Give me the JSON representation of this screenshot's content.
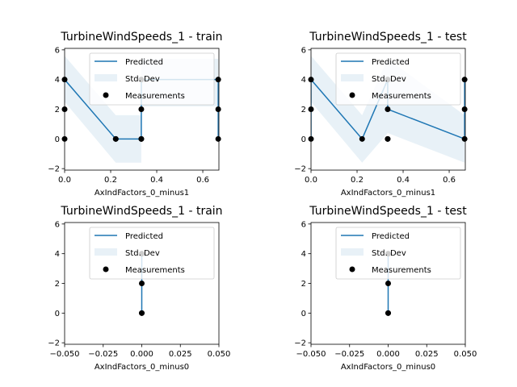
{
  "colors": {
    "predicted_line": "#1f77b4",
    "std_fill": "#1f77b4",
    "measurements": "#000000"
  },
  "chart_data": [
    {
      "type": "line",
      "title": "TurbineWindSpeeds_1 - train",
      "xlabel": "AxIndFactors_0_minus1",
      "xlim": [
        0,
        0.67
      ],
      "ylim": [
        -2.1,
        6.1
      ],
      "xticks": [
        0.0,
        0.2,
        0.4,
        0.6
      ],
      "xtick_labels": [
        "0.0",
        "0.2",
        "0.4",
        "0.6"
      ],
      "yticks": [
        -2,
        0,
        2,
        4,
        6
      ],
      "ytick_labels": [
        "−2",
        "0",
        "2",
        "4",
        "6"
      ],
      "legend": {
        "placement": "top-center",
        "entries": [
          "Predicted",
          "Std. Dev",
          "Measurements"
        ]
      },
      "predicted": {
        "x": [
          0,
          0.222,
          0.333,
          0.333,
          0.333,
          0.667,
          0.667
        ],
        "y": [
          4,
          0,
          0,
          4,
          4,
          4,
          0
        ]
      },
      "std_dev": {
        "x": [
          0,
          0.222,
          0.333,
          0.333,
          0.667,
          0.667
        ],
        "lower": [
          2.5,
          -1.6,
          -1.6,
          2.2,
          2.2,
          -1.6
        ],
        "upper": [
          5.6,
          1.6,
          1.6,
          5.4,
          5.4,
          1.6
        ]
      },
      "measurements": {
        "x": [
          0,
          0,
          0,
          0.222,
          0.222,
          0.333,
          0.333,
          0.333,
          0.333,
          0.667,
          0.667,
          0.667
        ],
        "y": [
          0,
          2,
          4,
          0,
          0,
          0,
          2,
          4,
          0,
          0,
          2,
          4
        ]
      }
    },
    {
      "type": "line",
      "title": "TurbineWindSpeeds_1 - test",
      "xlabel": "AxIndFactors_0_minus1",
      "xlim": [
        0,
        0.67
      ],
      "ylim": [
        -2.1,
        6.1
      ],
      "xticks": [
        0.0,
        0.2,
        0.4,
        0.6
      ],
      "xtick_labels": [
        "0.0",
        "0.2",
        "0.4",
        "0.6"
      ],
      "yticks": [
        -2,
        0,
        2,
        4,
        6
      ],
      "ytick_labels": [
        "−2",
        "0",
        "2",
        "4",
        "6"
      ],
      "legend": {
        "placement": "top-center",
        "entries": [
          "Predicted",
          "Std. Dev",
          "Measurements"
        ]
      },
      "predicted": {
        "x": [
          0,
          0,
          0.222,
          0.333,
          0.333,
          0.333,
          0.667,
          0.667
        ],
        "y": [
          0,
          4,
          0,
          4,
          2,
          2,
          0,
          4
        ]
      },
      "std_dev": {
        "x": [
          0,
          0.222,
          0.333,
          0.667
        ],
        "lower": [
          2.5,
          -1.6,
          0.4,
          -1.6
        ],
        "upper": [
          5.6,
          1.6,
          5.4,
          1.6
        ]
      },
      "measurements": {
        "x": [
          0,
          0,
          0,
          0.222,
          0.333,
          0.333,
          0.333,
          0.333,
          0.667,
          0.667,
          0.667
        ],
        "y": [
          0,
          2,
          4,
          0,
          0,
          2,
          4,
          0,
          0,
          2,
          4
        ]
      }
    },
    {
      "type": "line",
      "title": "TurbineWindSpeeds_1 - train",
      "xlabel": "AxIndFactors_0_minus0",
      "xlim": [
        -0.05,
        0.05
      ],
      "ylim": [
        -2.1,
        6.1
      ],
      "xticks": [
        -0.05,
        -0.025,
        0.0,
        0.025,
        0.05
      ],
      "xtick_labels": [
        "−0.050",
        "−0.025",
        "0.000",
        "0.025",
        "0.050"
      ],
      "yticks": [
        -2,
        0,
        2,
        4,
        6
      ],
      "ytick_labels": [
        "−2",
        "0",
        "2",
        "4",
        "6"
      ],
      "legend": {
        "placement": "top-center",
        "entries": [
          "Predicted",
          "Std. Dev",
          "Measurements"
        ]
      },
      "predicted": {
        "x": [
          0,
          0
        ],
        "y": [
          0,
          4
        ]
      },
      "measurements": {
        "x": [
          0,
          0,
          0,
          0
        ],
        "y": [
          0,
          0,
          2,
          4
        ]
      }
    },
    {
      "type": "line",
      "title": "TurbineWindSpeeds_1 - test",
      "xlabel": "AxIndFactors_0_minus0",
      "xlim": [
        -0.05,
        0.05
      ],
      "ylim": [
        -2.1,
        6.1
      ],
      "xticks": [
        -0.05,
        -0.025,
        0.0,
        0.025,
        0.05
      ],
      "xtick_labels": [
        "−0.050",
        "−0.025",
        "0.000",
        "0.025",
        "0.050"
      ],
      "yticks": [
        -2,
        0,
        2,
        4,
        6
      ],
      "ytick_labels": [
        "−2",
        "0",
        "2",
        "4",
        "6"
      ],
      "legend": {
        "placement": "top-center",
        "entries": [
          "Predicted",
          "Std. Dev",
          "Measurements"
        ]
      },
      "predicted": {
        "x": [
          0,
          0
        ],
        "y": [
          0,
          4
        ]
      },
      "measurements": {
        "x": [
          0,
          0,
          0,
          0
        ],
        "y": [
          0,
          0,
          2,
          4
        ]
      }
    }
  ]
}
